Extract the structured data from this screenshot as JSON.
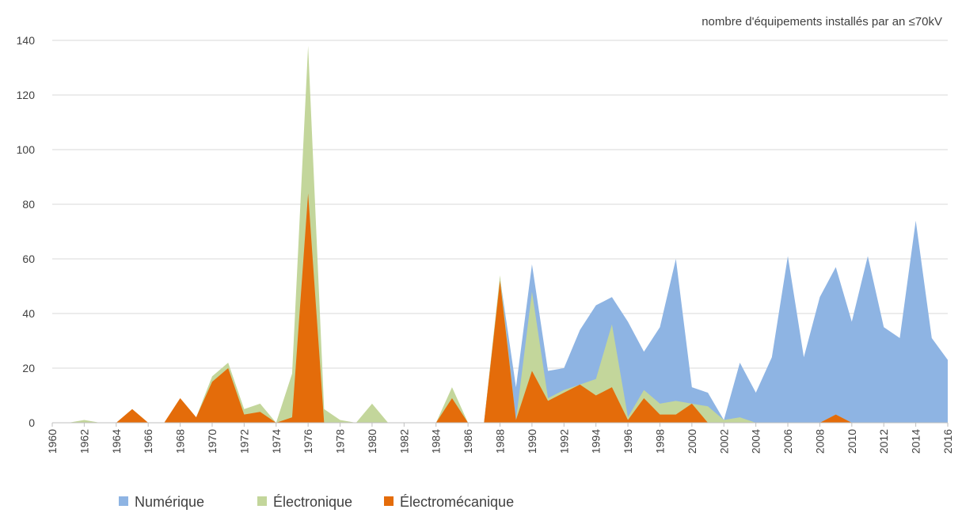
{
  "chart_data": {
    "type": "area",
    "title": "nombre d'équipements  installés par an  ≤70kV",
    "x": [
      1960,
      1961,
      1962,
      1963,
      1964,
      1965,
      1966,
      1967,
      1968,
      1969,
      1970,
      1971,
      1972,
      1973,
      1974,
      1975,
      1976,
      1977,
      1978,
      1979,
      1980,
      1981,
      1982,
      1983,
      1984,
      1985,
      1986,
      1987,
      1988,
      1989,
      1990,
      1991,
      1992,
      1993,
      1994,
      1995,
      1996,
      1997,
      1998,
      1999,
      2000,
      2001,
      2002,
      2003,
      2004,
      2005,
      2006,
      2007,
      2008,
      2009,
      2010,
      2011,
      2012,
      2013,
      2014,
      2015,
      2016
    ],
    "series": [
      {
        "name": "Numérique",
        "color": "#8eb4e3",
        "values": [
          0,
          0,
          0,
          0,
          0,
          0,
          0,
          0,
          0,
          0,
          0,
          0,
          0,
          0,
          0,
          0,
          0,
          0,
          0,
          0,
          0,
          0,
          0,
          0,
          0,
          0,
          0,
          0,
          53,
          13,
          58,
          19,
          20,
          34,
          43,
          46,
          37,
          26,
          35,
          60,
          13,
          11,
          1,
          22,
          11,
          24,
          61,
          24,
          46,
          57,
          37,
          61,
          35,
          31,
          74,
          31,
          23
        ]
      },
      {
        "name": "Électronique",
        "color": "#c3d69b",
        "values": [
          0,
          0,
          1,
          0,
          0,
          5,
          0,
          0,
          9,
          2,
          17,
          22,
          5,
          7,
          0,
          18,
          138,
          5,
          1,
          0,
          7,
          0,
          0,
          0,
          0,
          13,
          0,
          0,
          54,
          1,
          48,
          9,
          12,
          14,
          16,
          36,
          2,
          12,
          7,
          8,
          7,
          6,
          1,
          2,
          0,
          0,
          0,
          0,
          0,
          3,
          0,
          0,
          0,
          0,
          0,
          0,
          0
        ]
      },
      {
        "name": "Électromécanique",
        "color": "#e46c0a",
        "values": [
          0,
          0,
          0,
          0,
          0,
          5,
          0,
          0,
          9,
          2,
          15,
          20,
          3,
          4,
          0,
          2,
          84,
          0,
          0,
          0,
          0,
          0,
          0,
          0,
          0,
          9,
          0,
          0,
          52,
          1,
          19,
          8,
          11,
          14,
          10,
          13,
          1,
          9,
          3,
          3,
          7,
          0,
          0,
          0,
          0,
          0,
          0,
          0,
          0,
          3,
          0,
          0,
          0,
          0,
          0,
          0,
          0
        ]
      }
    ],
    "xlim": [
      1960,
      2016
    ],
    "xticks": [
      1960,
      1962,
      1964,
      1966,
      1968,
      1970,
      1972,
      1974,
      1976,
      1978,
      1980,
      1982,
      1984,
      1986,
      1988,
      1990,
      1992,
      1994,
      1996,
      1998,
      2000,
      2002,
      2004,
      2006,
      2008,
      2010,
      2012,
      2014,
      2016
    ],
    "ylim": [
      0,
      140
    ],
    "yticks": [
      0,
      20,
      40,
      60,
      80,
      100,
      120,
      140
    ],
    "grid": true,
    "legend": "bottom"
  }
}
